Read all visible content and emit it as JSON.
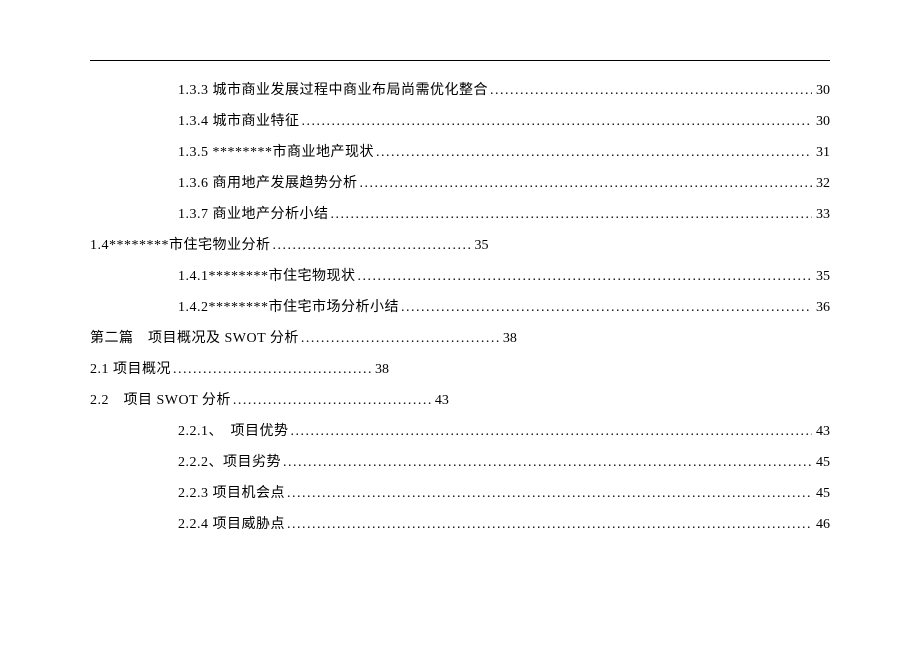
{
  "colors": {
    "background": "#ffffff",
    "text": "#000000",
    "rule": "#000000"
  },
  "font": {
    "family": "SimSun",
    "size_pt": 10.5
  },
  "toc_entries": [
    {
      "level": 2,
      "short": false,
      "label": "1.3.3 城市商业发展过程中商业布局尚需优化整合",
      "page": "30"
    },
    {
      "level": 2,
      "short": false,
      "label": "1.3.4 城市商业特征",
      "page": "30"
    },
    {
      "level": 2,
      "short": false,
      "label": "1.3.5 ********市商业地产现状",
      "page": "31"
    },
    {
      "level": 2,
      "short": false,
      "label": "1.3.6 商用地产发展趋势分析",
      "page": "32"
    },
    {
      "level": 2,
      "short": false,
      "label": "1.3.7 商业地产分析小结",
      "page": "33"
    },
    {
      "level": 1,
      "short": true,
      "label": "1.4********市住宅物业分析",
      "page": "35"
    },
    {
      "level": 2,
      "short": false,
      "label": "1.4.1********市住宅物现状",
      "page": "35"
    },
    {
      "level": 2,
      "short": false,
      "label": "1.4.2********市住宅市场分析小结",
      "page": "36"
    },
    {
      "level": 1,
      "short": true,
      "label": "第二篇　项目概况及 SWOT 分析",
      "page": "38"
    },
    {
      "level": 1,
      "short": true,
      "label": "2.1 项目概况",
      "page": "38"
    },
    {
      "level": 1,
      "short": true,
      "label": "2.2　项目 SWOT 分析",
      "page": "43"
    },
    {
      "level": 2,
      "short": false,
      "label": "2.2.1、　项目优势",
      "page": "43"
    },
    {
      "level": 2,
      "short": false,
      "label": "2.2.2、项目劣势",
      "page": "45"
    },
    {
      "level": 2,
      "short": false,
      "label": "2.2.3 项目机会点",
      "page": "45"
    },
    {
      "level": 2,
      "short": false,
      "label": "2.2.4 项目威胁点",
      "page": "46"
    }
  ]
}
